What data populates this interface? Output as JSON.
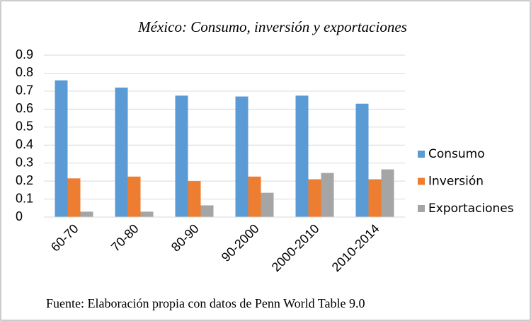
{
  "chart_data": {
    "type": "bar",
    "title": "México: Consumo, inversión y exportaciones",
    "categories": [
      "60-70",
      "70-80",
      "80-90",
      "90-2000",
      "2000-2010",
      "2010-2014"
    ],
    "series": [
      {
        "name": "Consumo",
        "color": "#5b9bd5",
        "values": [
          0.76,
          0.72,
          0.675,
          0.67,
          0.675,
          0.63
        ]
      },
      {
        "name": "Inversión",
        "color": "#ed7d31",
        "values": [
          0.215,
          0.225,
          0.2,
          0.225,
          0.21,
          0.21
        ]
      },
      {
        "name": "Exportaciones",
        "color": "#a5a5a5",
        "values": [
          0.03,
          0.03,
          0.065,
          0.135,
          0.245,
          0.265
        ]
      }
    ],
    "ylim": [
      0,
      0.9
    ],
    "yticks": [
      0,
      0.1,
      0.2,
      0.3,
      0.4,
      0.5,
      0.6,
      0.7,
      0.8,
      0.9
    ],
    "grid": true,
    "legend": "right",
    "source": "Fuente: Elaboración propia con datos de Penn World Table 9.0"
  }
}
